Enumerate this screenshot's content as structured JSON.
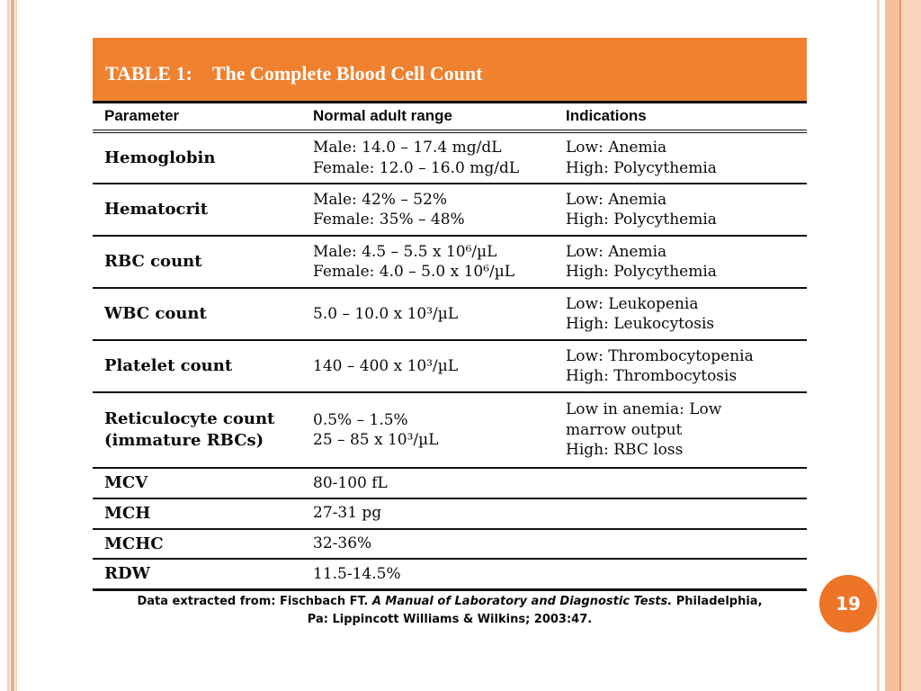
{
  "page_number": "19",
  "theme": {
    "accent_orange": "#F0812F",
    "badge_orange": "#ED7426",
    "stripe_light": "#F8D3B8",
    "stripe_medium": "#F1AE81",
    "band_peach": "#F7C09A",
    "band_line": "#EF9160",
    "band_pale": "#FAD5BC",
    "border_black": "#111111",
    "title_text_color": "#FFFFFF"
  },
  "title": {
    "label": "TABLE 1:",
    "text": "The Complete Blood Cell Count"
  },
  "table": {
    "headers": [
      "Parameter",
      "Normal adult range",
      "Indications"
    ],
    "rows": [
      {
        "param": [
          "Hemoglobin"
        ],
        "range": [
          "Male: 14.0 – 17.4 mg/dL",
          "Female: 12.0 – 16.0 mg/dL"
        ],
        "indications": [
          "Low: Anemia",
          "High: Polycythemia"
        ]
      },
      {
        "param": [
          "Hematocrit"
        ],
        "range": [
          "Male: 42% – 52%",
          "Female: 35% – 48%"
        ],
        "indications": [
          "Low: Anemia",
          "High: Polycythemia"
        ]
      },
      {
        "param": [
          "RBC count"
        ],
        "range": [
          "Male: 4.5 – 5.5 x 10⁶/µL",
          "Female: 4.0 – 5.0 x 10⁶/µL"
        ],
        "indications": [
          "Low: Anemia",
          "High: Polycythemia"
        ]
      },
      {
        "param": [
          "WBC count"
        ],
        "range": [
          "5.0 – 10.0 x 10³/µL"
        ],
        "indications": [
          "Low: Leukopenia",
          "High: Leukocytosis"
        ]
      },
      {
        "param": [
          "Platelet count"
        ],
        "range": [
          "140 – 400 x 10³/µL"
        ],
        "indications": [
          "Low: Thrombocytopenia",
          "High: Thrombocytosis"
        ]
      },
      {
        "param": [
          "Reticulocyte count",
          "(immature RBCs)"
        ],
        "range": [
          "0.5% – 1.5%",
          "25 – 85 x 10³/µL"
        ],
        "indications": [
          "Low in anemia: Low",
          "marrow output",
          "High: RBC loss"
        ]
      },
      {
        "param": [
          "MCV"
        ],
        "range": [
          "80-100 fL"
        ],
        "indications": []
      },
      {
        "param": [
          "MCH"
        ],
        "range": [
          "27-31 pg"
        ],
        "indications": []
      },
      {
        "param": [
          "MCHC"
        ],
        "range": [
          "32-36%"
        ],
        "indications": []
      },
      {
        "param": [
          "RDW"
        ],
        "range": [
          "11.5-14.5%"
        ],
        "indications": []
      }
    ]
  },
  "footer": {
    "line1_normal": "Data extracted from: Fischbach FT. ",
    "line1_italic": "A Manual of Laboratory and Diagnostic Tests.",
    "line1_end": " Philadelphia,",
    "line2": "Pa: Lippincott Williams &amp; Wilkins; 2003:47."
  }
}
